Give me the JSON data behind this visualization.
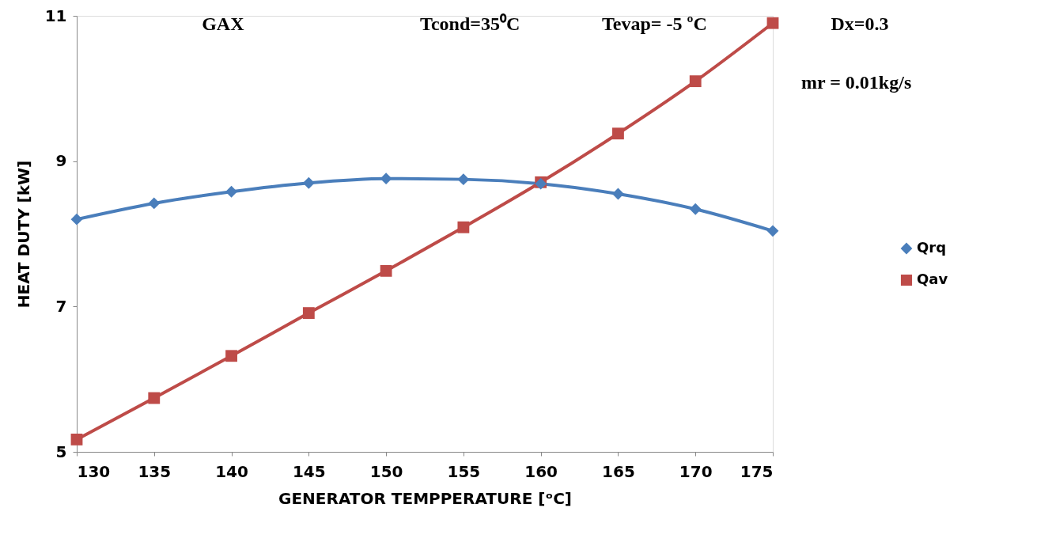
{
  "chart_data": {
    "type": "line",
    "xlabel": "GENERATOR TEMPPERATURE [ᵒC]",
    "ylabel": "HEAT DUTY [kW]",
    "annotations": [
      "GAX",
      "Tcond=35⁰C",
      "Tevap= -5 ºC",
      "Dx=0.3",
      "mr = 0.01kg/s"
    ],
    "x": [
      130,
      135,
      140,
      145,
      150,
      155,
      160,
      165,
      170,
      175
    ],
    "series": [
      {
        "name": "Qrq",
        "color": "#4a7ebb",
        "marker": "diamond",
        "values": [
          8.2,
          8.42,
          8.58,
          8.7,
          8.76,
          8.75,
          8.69,
          8.55,
          8.34,
          8.04
        ]
      },
      {
        "name": "Qav",
        "color": "#be4b48",
        "marker": "square",
        "values": [
          5.17,
          5.74,
          6.32,
          6.91,
          7.49,
          8.09,
          8.71,
          9.38,
          10.1,
          10.9
        ]
      }
    ],
    "xlim": [
      130,
      175
    ],
    "xticks": [
      130,
      135,
      140,
      145,
      150,
      155,
      160,
      165,
      170,
      175
    ],
    "ylim": [
      5,
      11
    ],
    "yticks": [
      5,
      7,
      9,
      11
    ],
    "grid": false,
    "legend": "right",
    "line_style": "solid"
  }
}
